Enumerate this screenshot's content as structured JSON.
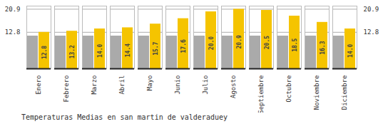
{
  "chart_data": {
    "type": "bar",
    "title": "Temperaturas Medias en san martin de valderaduey",
    "categories": [
      "Enero",
      "Febrero",
      "Marzo",
      "Abril",
      "Mayo",
      "Junio",
      "Julio",
      "Agosto",
      "Septiembre",
      "Octubre",
      "Noviembre",
      "Diciembre"
    ],
    "series": [
      {
        "color": "#AAAAAA",
        "values": [
          11.5,
          11.5,
          11.5,
          11.5,
          11.5,
          11.5,
          11.5,
          11.5,
          11.5,
          11.5,
          11.5,
          11.5
        ]
      },
      {
        "color": "#F5C400",
        "values": [
          12.8,
          13.2,
          14.0,
          14.4,
          15.7,
          17.6,
          20.0,
          20.9,
          20.5,
          18.5,
          16.3,
          14.0
        ],
        "value_labels": [
          "12.8",
          "13.2",
          "14.0",
          "14.4",
          "15.7",
          "17.6",
          "20.0",
          "20.9",
          "20.5",
          "18.5",
          "16.3",
          "14.0"
        ],
        "data_labels": true
      }
    ],
    "ylim": [
      0,
      22.0
    ],
    "yticks": [
      12.8,
      20.9
    ],
    "grid": true
  }
}
